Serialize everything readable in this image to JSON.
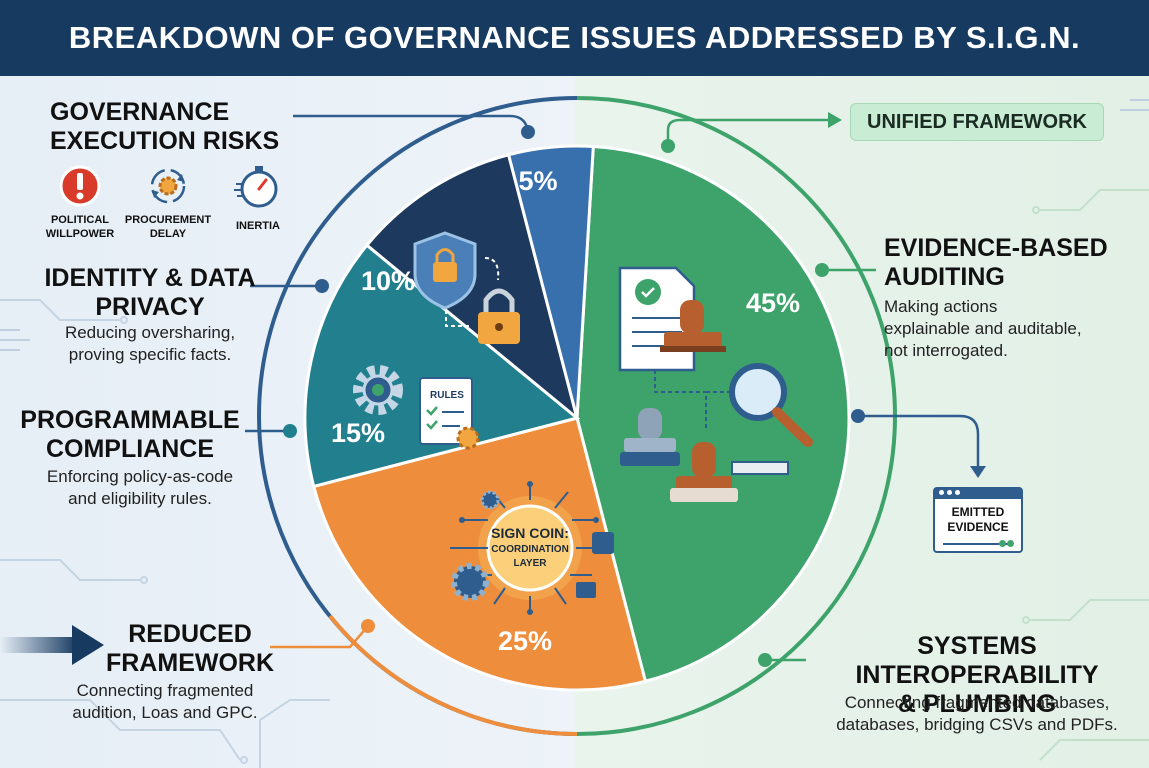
{
  "title": "BREAKDOWN OF GOVERNANCE ISSUES ADDRESSED BY S.I.G.N.",
  "chart_data": {
    "type": "pie",
    "slices": [
      {
        "key": "evidence",
        "value": 45,
        "label": "45%",
        "color": "#3ea36b"
      },
      {
        "key": "interop",
        "value": 25,
        "label": "25%",
        "color": "#ee8e3c"
      },
      {
        "key": "compliance",
        "value": 15,
        "label": "15%",
        "color": "#22808e"
      },
      {
        "key": "identity",
        "value": 10,
        "label": "10%",
        "color": "#1d3a5e"
      },
      {
        "key": "execution",
        "value": 5,
        "label": "5%",
        "color": "#3770ad"
      }
    ],
    "center_label": [
      "SIGN COIN:",
      "COORDINATION",
      "LAYER"
    ],
    "inner_icon_labels": {
      "rules": "RULES"
    }
  },
  "categories": {
    "execution": {
      "heading": [
        "GOVERNANCE",
        "EXECUTION RISKS"
      ],
      "risks": [
        {
          "icon": "exclamation-icon",
          "label": [
            "POLITICAL",
            "WILLPOWER"
          ]
        },
        {
          "icon": "procurement-gear-icon",
          "label": [
            "PROCUREMENT",
            "DELAY"
          ]
        },
        {
          "icon": "stopwatch-icon",
          "label": [
            "INERTIA"
          ]
        }
      ]
    },
    "identity": {
      "heading": [
        "IDENTITY & DATA",
        "PRIVACY"
      ],
      "desc": [
        "Reducing oversharing,",
        "proving specific facts."
      ]
    },
    "compliance": {
      "heading": [
        "PROGRAMMABLE",
        "COMPLIANCE"
      ],
      "desc": [
        "Enforcing policy-as-code",
        "and eligibility rules."
      ]
    },
    "reduced": {
      "heading": [
        "REDUCED",
        "FRAMEWORK"
      ],
      "desc": [
        "Connecting fragmented",
        "audition, Loas and GPC."
      ]
    },
    "unified": {
      "label": "UNIFIED FRAMEWORK"
    },
    "evidence": {
      "heading": [
        "EVIDENCE-BASED",
        "AUDITING"
      ],
      "desc": [
        "Making actions",
        "explainable and auditable,",
        "not interrogated."
      ]
    },
    "emitted": {
      "label": [
        "EMITTED",
        "EVIDENCE"
      ]
    },
    "interop": {
      "heading": [
        "SYSTEMS INTEROPERABILITY",
        "& PLUMBING"
      ],
      "desc": [
        "Connecting fragmented databases,",
        "databases, bridging CSVs and PDFs."
      ]
    }
  },
  "colors": {
    "banner": "#173a61",
    "connector_left": "#2f5d8e",
    "connector_right": "#3ea36b",
    "connector_orange": "#ee8e3c"
  }
}
